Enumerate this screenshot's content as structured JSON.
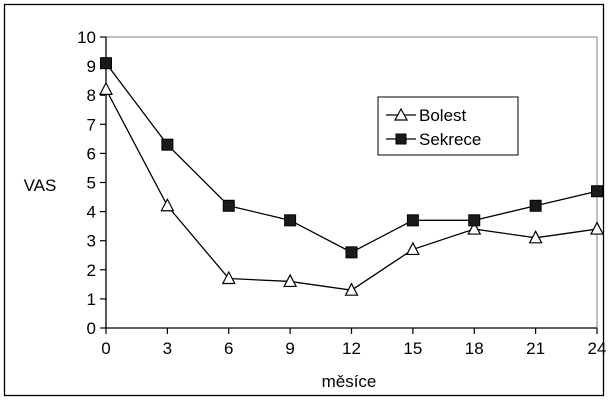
{
  "chart_data": {
    "type": "line",
    "title": "",
    "xlabel": "měsíce",
    "ylabel": "VAS",
    "x": [
      0,
      3,
      6,
      9,
      12,
      15,
      18,
      21,
      24
    ],
    "xlim": [
      0,
      24
    ],
    "ylim": [
      0,
      10
    ],
    "x_ticks": [
      "0",
      "3",
      "6",
      "9",
      "12",
      "15",
      "18",
      "21",
      "24"
    ],
    "y_ticks": [
      "0",
      "1",
      "2",
      "3",
      "4",
      "5",
      "6",
      "7",
      "8",
      "9",
      "10"
    ],
    "grid": false,
    "legend_position": "right",
    "series": [
      {
        "name": "Bolest",
        "marker": "open-triangle",
        "values": [
          8.2,
          4.2,
          1.7,
          1.6,
          1.3,
          2.7,
          3.4,
          3.1,
          3.4
        ]
      },
      {
        "name": "Sekrece",
        "marker": "filled-square",
        "values": [
          9.1,
          6.3,
          4.2,
          3.7,
          2.6,
          3.7,
          3.7,
          4.2,
          4.7
        ]
      }
    ],
    "colors": {
      "line": "#000000",
      "square_fill": "#1a1a1a",
      "triangle_fill": "#ffffff",
      "plot_border": "#808080",
      "frame": "#000000"
    }
  }
}
